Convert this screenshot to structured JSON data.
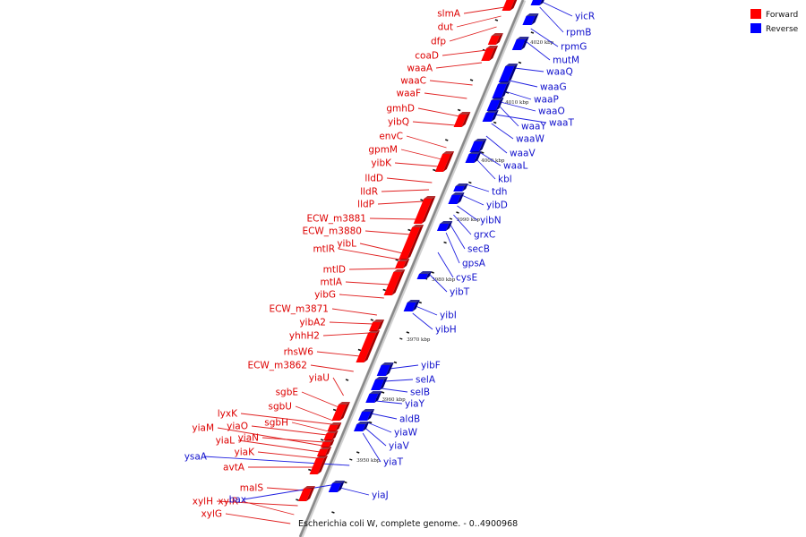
{
  "caption": "Escherichia coli W, complete genome. - 0..4900968",
  "legend": [
    {
      "label": "Forward",
      "color": "#ff0000"
    },
    {
      "label": "Reverse",
      "color": "#0000ff"
    }
  ],
  "ticks": [
    "4020 kbp",
    "4010 kbp",
    "4000 kbp",
    "3990 kbp",
    "3980 kbp",
    "3970 kbp",
    "3960 kbp",
    "3950 kbp"
  ],
  "forward_genes": [
    "slmA",
    "dut",
    "dfp",
    "coaD",
    "waaA",
    "waaC",
    "waaF",
    "gmhD",
    "yibQ",
    "envC",
    "gpmM",
    "yibK",
    "lldD",
    "lldR",
    "lldP",
    "ECW_m3881",
    "ECW_m3880",
    "mtlR",
    "yibL",
    "mtlD",
    "mtlA",
    "yibG",
    "ECW_m3871",
    "yibA2",
    "yhhH2",
    "rhsW6",
    "ECW_m3862",
    "yiaU",
    "sgbE",
    "sgbU",
    "lyxK",
    "sgbH",
    "yiaO",
    "yiaN",
    "yiaM",
    "yiaL",
    "yiaK",
    "avtA",
    "malS",
    "xylH",
    "xylR",
    "xylG"
  ],
  "reverse_genes": [
    "yicR",
    "rpmB",
    "rpmG",
    "mutM",
    "waaQ",
    "waaG",
    "waaP",
    "waaO",
    "waaT",
    "waaY",
    "waaW",
    "waaV",
    "waaL",
    "kbl",
    "tdh",
    "yibD",
    "yibN",
    "grxC",
    "secB",
    "gpsA",
    "cysE",
    "yibT",
    "yibI",
    "yibH",
    "yibF",
    "selA",
    "selB",
    "yiaY",
    "aldB",
    "yiaW",
    "yiaV",
    "yiaT",
    "ysaA",
    "bax",
    "yiaJ"
  ]
}
